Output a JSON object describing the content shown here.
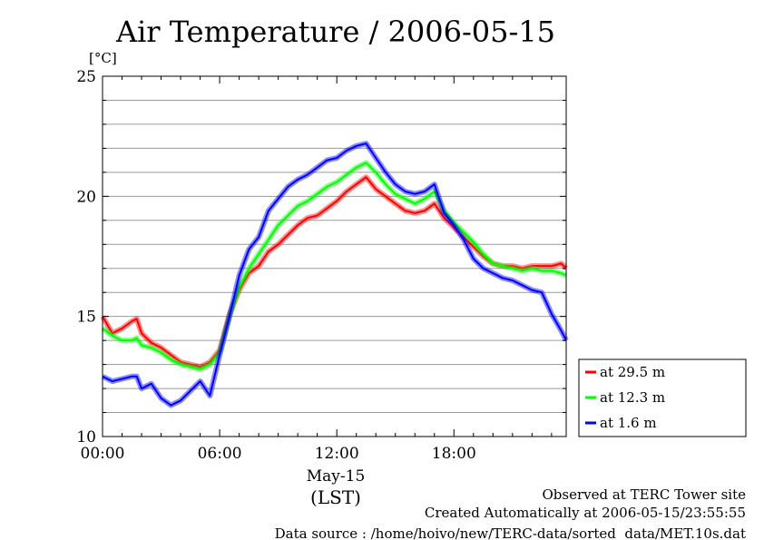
{
  "chart_data": {
    "type": "line",
    "title": "Air Temperature / 2006-05-15",
    "ylabel": "[°C]",
    "ylim": [
      10,
      25
    ],
    "yticks": [
      10,
      15,
      20,
      25
    ],
    "xlim": [
      0,
      23.75
    ],
    "xticks": [
      {
        "hour": 0,
        "label": "00:00"
      },
      {
        "hour": 6,
        "label": "06:00"
      },
      {
        "hour": 12,
        "label": "12:00"
      },
      {
        "hour": 18,
        "label": "18:00"
      }
    ],
    "x_sublabel": "May-15",
    "x_unit": "(LST)",
    "grid": true,
    "legend_position": "right",
    "x": [
      0,
      0.5,
      1,
      1.5,
      1.75,
      2,
      2.5,
      3,
      3.5,
      4,
      4.5,
      5,
      5.5,
      6,
      6.5,
      7,
      7.5,
      8,
      8.5,
      9,
      9.5,
      10,
      10.5,
      11,
      11.5,
      12,
      12.5,
      13,
      13.5,
      14,
      14.5,
      15,
      15.5,
      16,
      16.5,
      17,
      17.5,
      18,
      18.5,
      19,
      19.5,
      20,
      20.5,
      21,
      21.5,
      22,
      22.5,
      23,
      23.5,
      23.75
    ],
    "series": [
      {
        "name": "at 29.5 m",
        "color": "#ff0000",
        "values": [
          15.0,
          14.3,
          14.5,
          14.8,
          14.9,
          14.3,
          13.9,
          13.7,
          13.4,
          13.1,
          13.0,
          12.9,
          13.1,
          13.6,
          15.1,
          16.1,
          16.8,
          17.1,
          17.7,
          18.0,
          18.4,
          18.8,
          19.1,
          19.2,
          19.5,
          19.8,
          20.2,
          20.5,
          20.8,
          20.3,
          20.0,
          19.7,
          19.4,
          19.3,
          19.4,
          19.7,
          19.1,
          18.7,
          18.3,
          17.9,
          17.5,
          17.2,
          17.1,
          17.1,
          17.0,
          17.1,
          17.1,
          17.1,
          17.2,
          17.0
        ]
      },
      {
        "name": "at 12.3 m",
        "color": "#00ff00",
        "values": [
          14.5,
          14.2,
          14.0,
          14.0,
          14.1,
          13.8,
          13.7,
          13.5,
          13.2,
          13.0,
          12.9,
          12.8,
          13.0,
          13.5,
          15.0,
          16.2,
          17.0,
          17.6,
          18.2,
          18.8,
          19.2,
          19.6,
          19.8,
          20.1,
          20.4,
          20.6,
          20.9,
          21.2,
          21.4,
          21.0,
          20.5,
          20.1,
          19.9,
          19.7,
          19.9,
          20.2,
          19.4,
          18.9,
          18.5,
          18.1,
          17.6,
          17.2,
          17.1,
          17.0,
          16.9,
          17.0,
          16.9,
          16.9,
          16.8,
          16.7
        ]
      },
      {
        "name": "at 1.6 m",
        "color": "#0000ff",
        "values": [
          12.5,
          12.3,
          12.4,
          12.5,
          12.5,
          12.0,
          12.2,
          11.6,
          11.3,
          11.5,
          11.9,
          12.3,
          11.7,
          13.4,
          15.0,
          16.7,
          17.8,
          18.3,
          19.4,
          19.9,
          20.4,
          20.7,
          20.9,
          21.2,
          21.5,
          21.6,
          21.9,
          22.1,
          22.2,
          21.6,
          21.0,
          20.5,
          20.2,
          20.1,
          20.2,
          20.5,
          19.3,
          18.8,
          18.2,
          17.4,
          17.0,
          16.8,
          16.6,
          16.5,
          16.3,
          16.1,
          16.0,
          15.1,
          14.4,
          14.0
        ]
      }
    ]
  },
  "footer": {
    "line1": "Observed at TERC Tower site",
    "line2": "Created Automatically at 2006-05-15/23:55:55",
    "line3": "Data source : /home/hoivo/new/TERC-data/sorted  data/MET.10s.dat"
  }
}
